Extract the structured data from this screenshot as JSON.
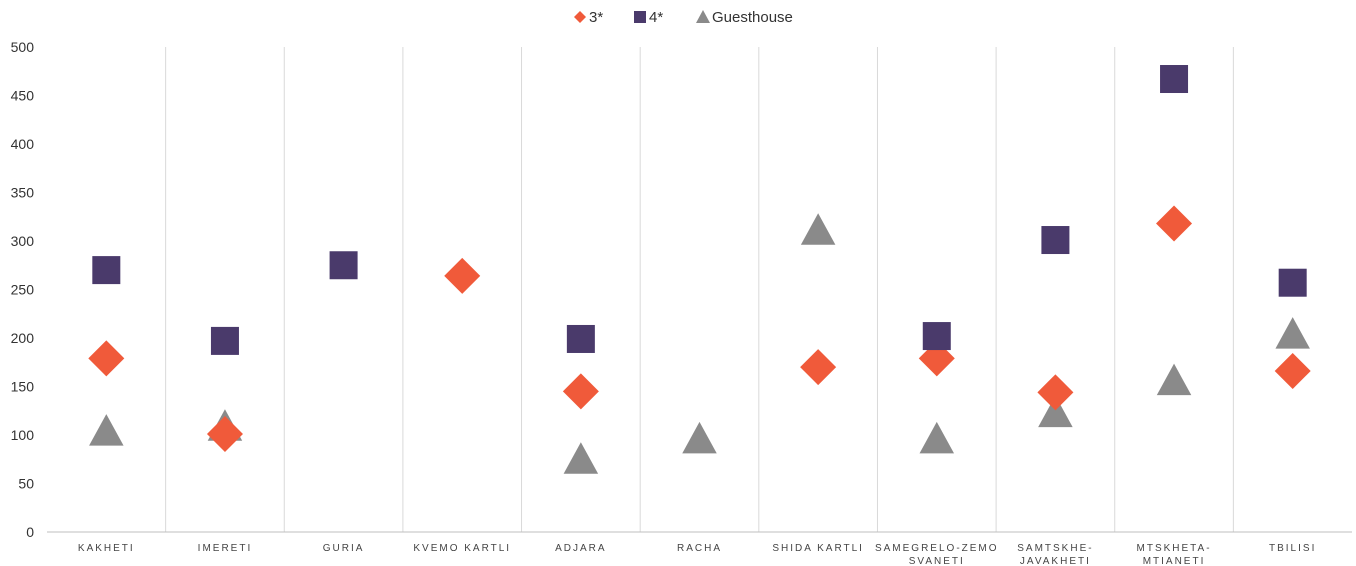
{
  "chart_data": {
    "type": "scatter",
    "categories": [
      [
        "KAKHETI"
      ],
      [
        "IMERETI"
      ],
      [
        "GURIA"
      ],
      [
        "KVEMO KARTLI"
      ],
      [
        "ADJARA"
      ],
      [
        "RACHA"
      ],
      [
        "SHIDA KARTLI"
      ],
      [
        "SAMEGRELO-ZEMO",
        "SVANETI"
      ],
      [
        "SAMTSKHE-",
        "JAVAKHETI"
      ],
      [
        "MTSKHETA-",
        "MTIANETI"
      ],
      [
        "TBILISI"
      ]
    ],
    "series": [
      {
        "name": "3*",
        "marker": "diamond",
        "color": "#f05a3a",
        "values": [
          179,
          101,
          null,
          264,
          145,
          null,
          170,
          179,
          144,
          318,
          166
        ]
      },
      {
        "name": "4*",
        "marker": "square",
        "color": "#4a3a6b",
        "values": [
          270,
          197,
          275,
          null,
          199,
          null,
          null,
          202,
          301,
          467,
          257
        ]
      },
      {
        "name": "Guesthouse",
        "marker": "triangle",
        "color": "#8a8a8a",
        "values": [
          103,
          108,
          null,
          null,
          74,
          95,
          310,
          95,
          122,
          155,
          203
        ]
      }
    ],
    "ylim": [
      0,
      500
    ],
    "yticks": [
      0,
      50,
      100,
      150,
      200,
      250,
      300,
      350,
      400,
      450,
      500
    ],
    "grid": "vertical category separators",
    "legend": "top-center"
  }
}
